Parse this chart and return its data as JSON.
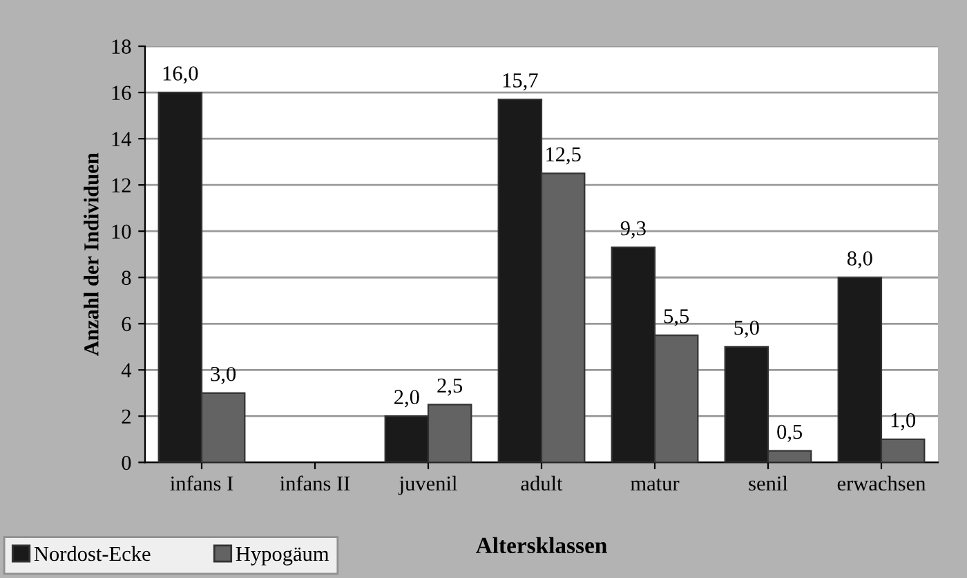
{
  "chart_data": {
    "type": "bar",
    "xlabel": "Altersklassen",
    "ylabel": "Anzahl der Individuen",
    "categories": [
      "infans I",
      "infans II",
      "juvenil",
      "adult",
      "matur",
      "senil",
      "erwachsen"
    ],
    "series": [
      {
        "name": "Nordost-Ecke",
        "color": "#1a1a1a",
        "values": [
          16.0,
          0,
          2.0,
          15.7,
          9.3,
          5.0,
          8.0
        ],
        "value_labels": [
          "16,0",
          null,
          "2,0",
          "15,7",
          "9,3",
          "5,0",
          "8,0"
        ]
      },
      {
        "name": "Hypogäum",
        "color": "#636363",
        "values": [
          3.0,
          0,
          2.5,
          12.5,
          5.5,
          0.5,
          1.0
        ],
        "value_labels": [
          "3,0",
          null,
          "2,5",
          "12,5",
          "5,5",
          "0,5",
          "1,0"
        ]
      }
    ],
    "ylim": [
      0,
      18
    ],
    "yticks": [
      0,
      2,
      4,
      6,
      8,
      10,
      12,
      14,
      16,
      18
    ],
    "grid": "y",
    "legend": "bottom left"
  }
}
